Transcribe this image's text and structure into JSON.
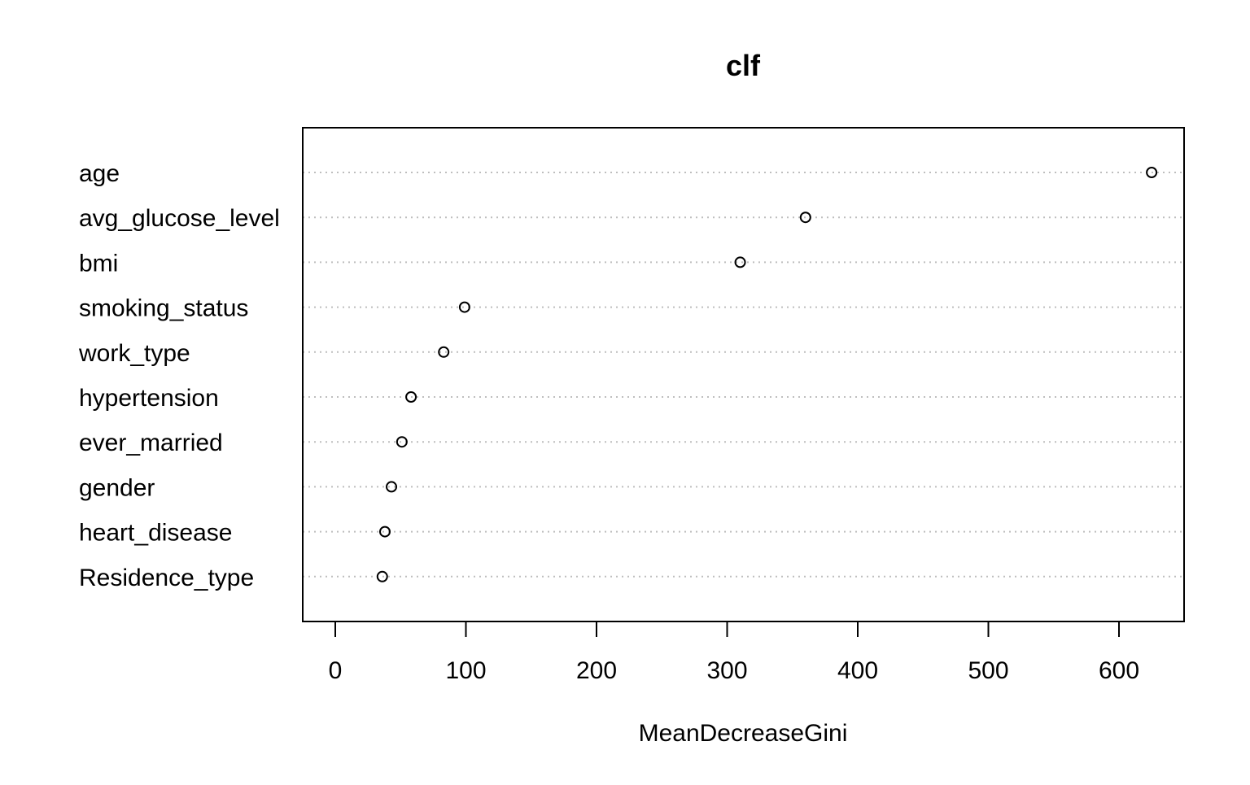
{
  "chart_data": {
    "type": "scatter",
    "title": "clf",
    "xlabel": "MeanDecreaseGini",
    "ylabel": "",
    "xlim": [
      -25,
      650
    ],
    "xticks": [
      0,
      100,
      200,
      300,
      400,
      500,
      600
    ],
    "grid": "horizontal dotted",
    "legend": "none",
    "categories": [
      "age",
      "avg_glucose_level",
      "bmi",
      "smoking_status",
      "work_type",
      "hypertension",
      "ever_married",
      "gender",
      "heart_disease",
      "Residence_type"
    ],
    "values": [
      625,
      360,
      310,
      99,
      83,
      58,
      51,
      43,
      38,
      36
    ],
    "colors": {
      "axis": "#000000",
      "grid": "#bebebe",
      "point": "#000000",
      "background": "#ffffff"
    }
  }
}
